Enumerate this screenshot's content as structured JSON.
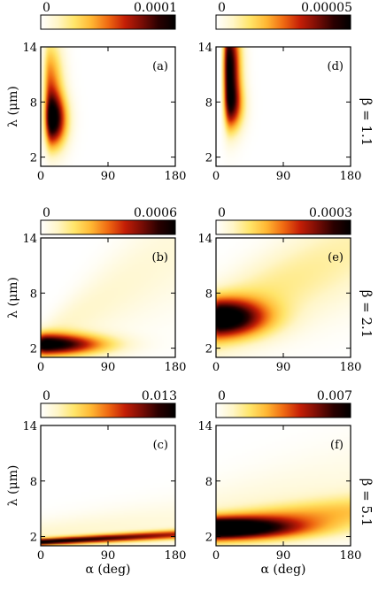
{
  "figure": {
    "colormap": [
      "#ffffff",
      "#fff6c8",
      "#ffe56a",
      "#ffb733",
      "#f06a12",
      "#c41e06",
      "#7a0d05",
      "#2a0000",
      "#000000"
    ],
    "beta_labels": [
      "β = 1.1",
      "β = 2.1",
      "β = 5.1"
    ]
  },
  "chart_data": [
    {
      "type": "heatmap",
      "panel": "(a)",
      "row": 0,
      "col": 0,
      "xlabel": "",
      "ylabel": "λ (μm)",
      "xlim": [
        0,
        180
      ],
      "ylim": [
        1,
        14
      ],
      "xticks": [
        "0",
        "90",
        "180"
      ],
      "yticks": [
        "2",
        "8",
        "14"
      ],
      "colorbar": {
        "min": 0,
        "max": 0.0001,
        "min_label": "0",
        "max_label": "0.0001"
      },
      "blobs": [
        {
          "alpha_center": 15,
          "lambda_center": 6,
          "alpha_width": 10,
          "lambda_width": 2.0,
          "peak": 1.0,
          "alpha_start": 0,
          "alpha_tail": 6
        },
        {
          "alpha_center": 12,
          "lambda_center": 10.5,
          "alpha_width": 9,
          "lambda_width": 3.0,
          "peak": 0.45,
          "alpha_start": 0,
          "alpha_tail": 6
        }
      ],
      "base_level": 0.0
    },
    {
      "type": "heatmap",
      "panel": "(d)",
      "row": 0,
      "col": 1,
      "xlabel": "",
      "ylabel": "",
      "xlim": [
        0,
        180
      ],
      "ylim": [
        1,
        14
      ],
      "xticks": [
        "0",
        "90",
        "180"
      ],
      "yticks": [
        "2",
        "8",
        "14"
      ],
      "colorbar": {
        "min": 0,
        "max": 5e-05,
        "min_label": "0",
        "max_label": "0.00005"
      },
      "blobs": [
        {
          "alpha_center": 17,
          "lambda_center": 12,
          "alpha_width": 8,
          "lambda_width": 3.5,
          "peak": 1.0,
          "alpha_start": 8,
          "alpha_tail": 5
        },
        {
          "alpha_center": 20,
          "lambda_center": 7.5,
          "alpha_width": 9,
          "lambda_width": 1.8,
          "peak": 0.55,
          "alpha_start": 8,
          "alpha_tail": 5
        }
      ],
      "base_level": 0.0
    },
    {
      "type": "heatmap",
      "panel": "(b)",
      "row": 1,
      "col": 0,
      "xlabel": "",
      "ylabel": "λ (μm)",
      "xlim": [
        0,
        180
      ],
      "ylim": [
        1,
        14
      ],
      "xticks": [
        "0",
        "90",
        "180"
      ],
      "yticks": [
        "2",
        "8",
        "14"
      ],
      "colorbar": {
        "min": 0,
        "max": 0.0006,
        "min_label": "0",
        "max_label": "0.0006"
      },
      "blobs": [
        {
          "alpha_center": 8,
          "lambda_center": 2.4,
          "alpha_width": 22,
          "lambda_width": 0.8,
          "peak": 1.0,
          "alpha_start": 0,
          "alpha_tail": 60
        }
      ],
      "ridge": {
        "lambda_at_0": 2.6,
        "lambda_at_180": 12.5,
        "width_at_0": 1.2,
        "width_at_180": 4.5,
        "level": 0.13
      },
      "base_level": 0.0
    },
    {
      "type": "heatmap",
      "panel": "(e)",
      "row": 1,
      "col": 1,
      "xlabel": "",
      "ylabel": "",
      "xlim": [
        0,
        180
      ],
      "ylim": [
        1,
        14
      ],
      "xticks": [
        "0",
        "90",
        "180"
      ],
      "yticks": [
        "2",
        "8",
        "14"
      ],
      "colorbar": {
        "min": 0,
        "max": 0.0003,
        "min_label": "0",
        "max_label": "0.0003"
      },
      "blobs": [
        {
          "alpha_center": 6,
          "lambda_center": 5.3,
          "alpha_width": 16,
          "lambda_width": 1.4,
          "peak": 1.0,
          "alpha_start": 0,
          "alpha_tail": 50
        }
      ],
      "ridge": {
        "lambda_at_0": 4.8,
        "lambda_at_180": 12.5,
        "width_at_0": 2.5,
        "width_at_180": 4.0,
        "level": 0.25
      },
      "base_level": 0.0
    },
    {
      "type": "heatmap",
      "panel": "(c)",
      "row": 2,
      "col": 0,
      "xlabel": "α (deg)",
      "ylabel": "λ (μm)",
      "xlim": [
        0,
        180
      ],
      "ylim": [
        1,
        14
      ],
      "xticks": [
        "0",
        "90",
        "180"
      ],
      "yticks": [
        "2",
        "8",
        "14"
      ],
      "colorbar": {
        "min": 0,
        "max": 0.013,
        "min_label": "0",
        "max_label": "0.013"
      },
      "blobs": [],
      "ridge": {
        "lambda_at_0": 1.4,
        "lambda_at_180": 2.2,
        "width_at_0": 0.25,
        "width_at_180": 0.35,
        "level": 0.95
      },
      "halo": {
        "lambda_at_0": 2.0,
        "lambda_at_180": 3.5,
        "width_at_0": 1.2,
        "width_at_180": 1.8,
        "level": 0.12
      },
      "base_level": 0.0
    },
    {
      "type": "heatmap",
      "panel": "(f)",
      "row": 2,
      "col": 1,
      "xlabel": "α (deg)",
      "ylabel": "",
      "xlim": [
        0,
        180
      ],
      "ylim": [
        1,
        14
      ],
      "xticks": [
        "0",
        "90",
        "180"
      ],
      "yticks": [
        "2",
        "8",
        "14"
      ],
      "colorbar": {
        "min": 0,
        "max": 0.007,
        "min_label": "0",
        "max_label": "0.007"
      },
      "blobs": [
        {
          "alpha_center": 5,
          "lambda_center": 2.8,
          "alpha_width": 35,
          "lambda_width": 0.8,
          "peak": 0.95,
          "alpha_start": 0,
          "alpha_tail": 80
        }
      ],
      "ridge": {
        "lambda_at_0": 3.0,
        "lambda_at_180": 4.6,
        "width_at_0": 0.9,
        "width_at_180": 1.3,
        "level": 0.45
      },
      "halo": {
        "lambda_at_0": 4.0,
        "lambda_at_180": 7.5,
        "width_at_0": 2.5,
        "width_at_180": 3.5,
        "level": 0.1
      },
      "base_level": 0.0
    }
  ]
}
